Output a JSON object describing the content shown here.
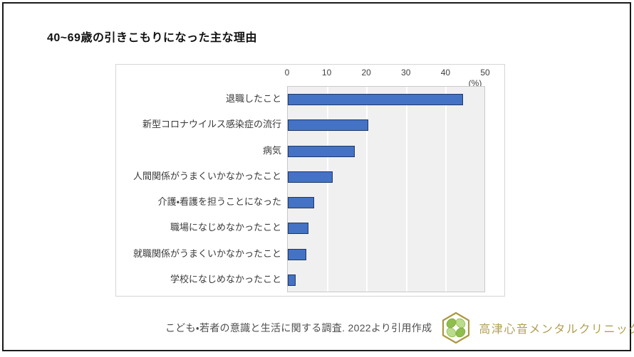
{
  "slide": {
    "title": "40~69歳の引きこもりになった主な理由"
  },
  "chart_data": {
    "type": "bar",
    "orientation": "horizontal",
    "title": "40~69歳の引きこもりになった主な理由",
    "categories": [
      "退職したこと",
      "新型コロナウイルス感染症の流行",
      "病気",
      "人間関係がうまくいかなかったこと",
      "介護・看護を担うことになった",
      "職場になじめなかったこと",
      "就職関係がうまくいかなかったこと",
      "学校になじめなかったこと"
    ],
    "values": [
      44.5,
      20.5,
      17,
      11.5,
      6.7,
      5.2,
      4.7,
      2
    ],
    "xlabel_unit": "(%)",
    "x_ticks": [
      0,
      10,
      20,
      30,
      40,
      50
    ],
    "xlim": [
      0,
      50
    ],
    "grid": true,
    "legend_position": "none",
    "bar_color": "#4472c4",
    "bar_border_color": "#1f3864",
    "plot_background": "#f0f0f0",
    "gridline_color": "#ffffff"
  },
  "footer": {
    "citation": "こども・若者の意識と生活に関する調査. 2022より引用作成",
    "clinic_name": "高津心音メンタルクリニック",
    "logo_icon": "hexagon-clover-logo",
    "logo_gold": "#ab9840",
    "logo_green_dark": "#8fbe4c",
    "logo_green_light": "#bcdc8d"
  }
}
